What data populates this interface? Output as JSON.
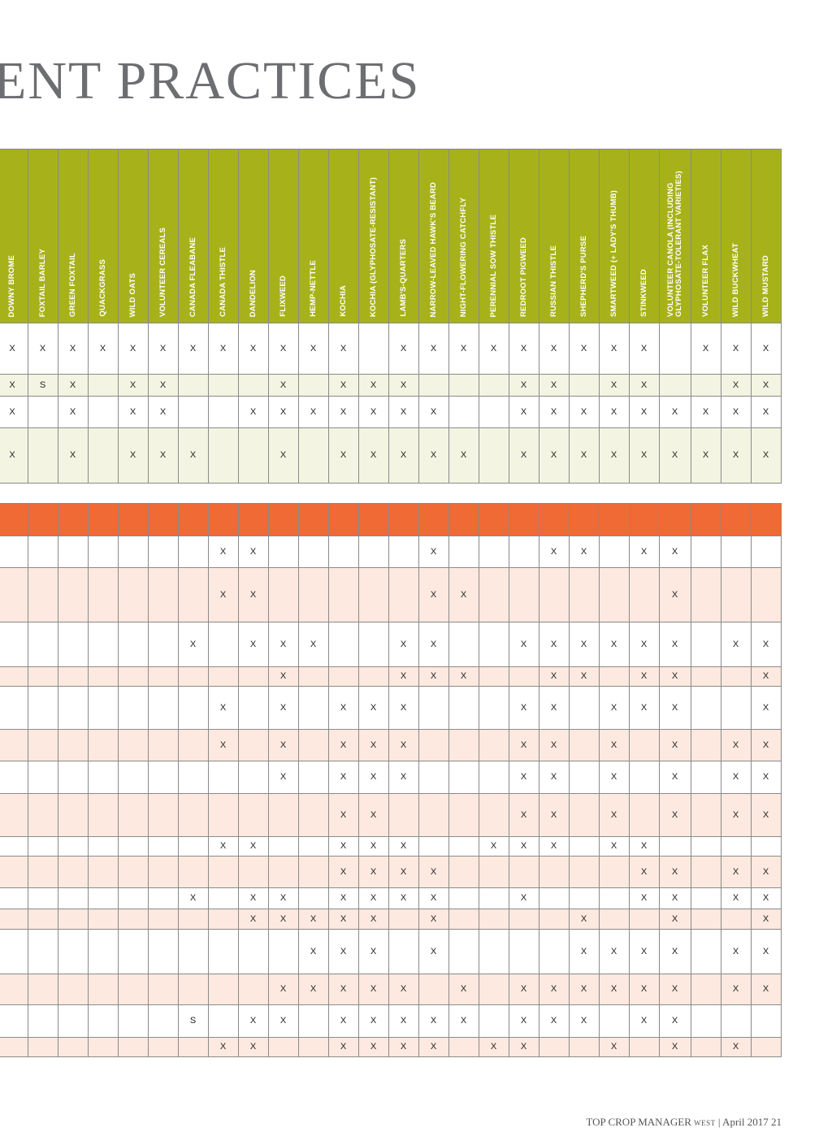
{
  "page_title": "ENT PRACTICES",
  "weeds": [
    "DOWNY BROME",
    "FOXTAIL BARLEY",
    "GREEN FOXTAIL",
    "QUACKGRASS",
    "WILD OATS",
    "VOLUNTEER CEREALS",
    "CANADA FLEABANE",
    "CANADA THISTLE",
    "DANDELION",
    "FLIXWEED",
    "HEMP-NETTLE",
    "KOCHIA",
    "KOCHIA (GLYPHOSATE-RESISTANT)",
    "LAMB'S-QUARTERS",
    "NARROW-LEAVED HAWK'S BEARD",
    "NIGHT-FLOWERING CATCHFLY",
    "PERENNIAL SOW THISTLE",
    "REDROOT PIGWEED",
    "RUSSIAN THISTLE",
    "SHEPHERD'S PURSE",
    "SMARTWEED (+ LADY'S THUMB)",
    "STINKWEED",
    "VOLUNTEER CANOLA (INCLUDING GLYPHOSATE-TOLERANT VARIETIES)",
    "VOLUNTEER FLAX",
    "WILD BUCKWHEAT",
    "WILD MUSTARD"
  ],
  "green_rows": [
    [
      "X",
      "X",
      "X",
      "X",
      "X",
      "X",
      "X",
      "X",
      "X",
      "X",
      "X",
      "X",
      "",
      "X",
      "X",
      "X",
      "X",
      "X",
      "X",
      "X",
      "X",
      "X",
      "",
      "X",
      "X",
      "X"
    ],
    [
      "X",
      "S",
      "X",
      "",
      "X",
      "X",
      "",
      "",
      "",
      "X",
      "",
      "X",
      "X",
      "X",
      "",
      "",
      "",
      "X",
      "X",
      "",
      "X",
      "X",
      "",
      "",
      "X",
      "X"
    ],
    [
      "X",
      "",
      "X",
      "",
      "X",
      "X",
      "",
      "",
      "X",
      "X",
      "X",
      "X",
      "X",
      "X",
      "X",
      "",
      "",
      "X",
      "X",
      "X",
      "X",
      "X",
      "X",
      "X",
      "X",
      "X"
    ],
    [
      "X",
      "",
      "X",
      "",
      "X",
      "X",
      "X",
      "",
      "",
      "X",
      "",
      "X",
      "X",
      "X",
      "X",
      "X",
      "",
      "X",
      "X",
      "X",
      "X",
      "X",
      "X",
      "X",
      "X",
      "X"
    ]
  ],
  "orange_rows": [
    [
      "",
      "",
      "",
      "",
      "",
      "",
      "",
      "X",
      "X",
      "",
      "",
      "",
      "",
      "",
      "X",
      "",
      "",
      "",
      "X",
      "X",
      "",
      "X",
      "X",
      "",
      "",
      ""
    ],
    [
      "",
      "",
      "",
      "",
      "",
      "",
      "",
      "X",
      "X",
      "",
      "",
      "",
      "",
      "",
      "X",
      "X",
      "",
      "",
      "",
      "",
      "",
      "",
      "X",
      "",
      "",
      ""
    ],
    [
      "",
      "",
      "",
      "",
      "",
      "",
      "X",
      "",
      "X",
      "X",
      "X",
      "",
      "",
      "X",
      "X",
      "",
      "",
      "X",
      "X",
      "X",
      "X",
      "X",
      "X",
      "",
      "X",
      "X"
    ],
    [
      "",
      "",
      "",
      "",
      "",
      "",
      "",
      "",
      "",
      "X",
      "",
      "",
      "",
      "X",
      "X",
      "X",
      "",
      "",
      "X",
      "X",
      "",
      "X",
      "X",
      "",
      "",
      "X"
    ],
    [
      "",
      "",
      "",
      "",
      "",
      "",
      "",
      "X",
      "",
      "X",
      "",
      "X",
      "X",
      "X",
      "",
      "",
      "",
      "X",
      "X",
      "",
      "X",
      "X",
      "X",
      "",
      "",
      "X"
    ],
    [
      "",
      "",
      "",
      "",
      "",
      "",
      "",
      "X",
      "",
      "X",
      "",
      "X",
      "X",
      "X",
      "",
      "",
      "",
      "X",
      "X",
      "",
      "X",
      "",
      "X",
      "",
      "X",
      "X"
    ],
    [
      "",
      "",
      "",
      "",
      "",
      "",
      "",
      "",
      "",
      "X",
      "",
      "X",
      "X",
      "X",
      "",
      "",
      "",
      "X",
      "X",
      "",
      "X",
      "",
      "X",
      "",
      "X",
      "X"
    ],
    [
      "",
      "",
      "",
      "",
      "",
      "",
      "",
      "",
      "",
      "",
      "",
      "X",
      "X",
      "",
      "",
      "",
      "",
      "X",
      "X",
      "",
      "X",
      "",
      "X",
      "",
      "X",
      "X"
    ],
    [
      "",
      "",
      "",
      "",
      "",
      "",
      "",
      "X",
      "X",
      "",
      "",
      "X",
      "X",
      "X",
      "",
      "",
      "X",
      "X",
      "X",
      "",
      "X",
      "X",
      "",
      "",
      "",
      ""
    ],
    [
      "",
      "",
      "",
      "",
      "",
      "",
      "",
      "",
      "",
      "",
      "",
      "X",
      "X",
      "X",
      "X",
      "",
      "",
      "",
      "",
      "",
      "",
      "X",
      "X",
      "",
      "X",
      "X"
    ],
    [
      "",
      "",
      "",
      "",
      "",
      "",
      "X",
      "",
      "X",
      "X",
      "",
      "X",
      "X",
      "X",
      "X",
      "",
      "",
      "X",
      "",
      "",
      "",
      "X",
      "X",
      "",
      "X",
      "X"
    ],
    [
      "",
      "",
      "",
      "",
      "",
      "",
      "",
      "",
      "X",
      "X",
      "X",
      "X",
      "X",
      "",
      "X",
      "",
      "",
      "",
      "",
      "X",
      "",
      "",
      "X",
      "",
      "",
      "X"
    ],
    [
      "",
      "",
      "",
      "",
      "",
      "",
      "",
      "",
      "",
      "",
      "X",
      "X",
      "X",
      "",
      "X",
      "",
      "",
      "",
      "",
      "X",
      "X",
      "X",
      "X",
      "",
      "X",
      "X"
    ],
    [
      "",
      "",
      "",
      "",
      "",
      "",
      "",
      "",
      "",
      "X",
      "X",
      "X",
      "X",
      "X",
      "",
      "X",
      "",
      "X",
      "X",
      "X",
      "X",
      "X",
      "X",
      "",
      "X",
      "X"
    ],
    [
      "",
      "",
      "",
      "",
      "",
      "",
      "S",
      "",
      "X",
      "X",
      "",
      "X",
      "X",
      "X",
      "X",
      "X",
      "",
      "X",
      "X",
      "X",
      "",
      "X",
      "X",
      "",
      "",
      ""
    ],
    [
      "",
      "",
      "",
      "",
      "",
      "",
      "",
      "X",
      "X",
      "",
      "",
      "X",
      "X",
      "X",
      "X",
      "",
      "X",
      "X",
      "",
      "",
      "X",
      "",
      "X",
      "",
      "X",
      ""
    ]
  ],
  "footer": {
    "magazine": "TOP CROP MANAGER",
    "edition": "WEST",
    "issue": "| April 2017 21"
  },
  "colors": {
    "green_header": "#a7b21b",
    "orange_header": "#ef6a35",
    "green_tint": "#f3f5e2",
    "orange_tint": "#fde9df",
    "grid": "#8a8a8a"
  }
}
